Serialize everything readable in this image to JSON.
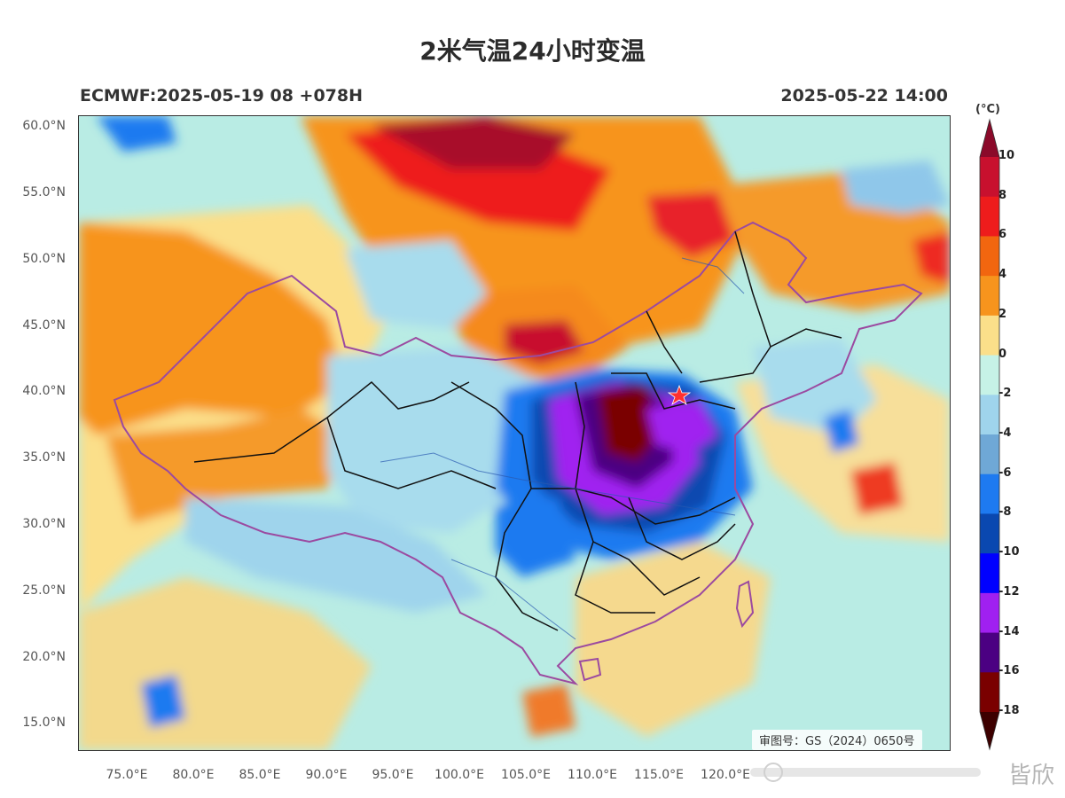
{
  "title": "2米气温24小时变温",
  "model_run": "ECMWF:2025-05-19 08 +078H",
  "valid_time": "2025-05-22 14:00",
  "approval_number": "审图号：GS（2024）0650号",
  "watermark_text": "皆欣",
  "lat_labels": [
    "60.0°N",
    "55.0°N",
    "50.0°N",
    "45.0°N",
    "40.0°N",
    "35.0°N",
    "30.0°N",
    "25.0°N",
    "20.0°N",
    "15.0°N"
  ],
  "lon_labels": [
    "75.0°E",
    "80.0°E",
    "85.0°E",
    "90.0°E",
    "95.0°E",
    "100.0°E",
    "105.0°E",
    "110.0°E",
    "115.0°E",
    "120.0°E"
  ],
  "colorbar": {
    "unit": "(°C)",
    "labels": [
      "10",
      "8",
      "6",
      "4",
      "2",
      "0",
      "-2",
      "-4",
      "-6",
      "-8",
      "-10",
      "-12",
      "-14",
      "-16",
      "-18"
    ],
    "colors": [
      "#8b0a2a",
      "#c8102e",
      "#ee1c1c",
      "#f2660f",
      "#f7941d",
      "#fbdf8a",
      "#c6f2e6",
      "#9fd4ec",
      "#6fa8d6",
      "#1e7af0",
      "#0a48b0",
      "#0000ff",
      "#a020f0",
      "#4b0082",
      "#7a0000",
      "#3d0000"
    ]
  },
  "icons": {
    "city_marker": "red-star-icon"
  }
}
